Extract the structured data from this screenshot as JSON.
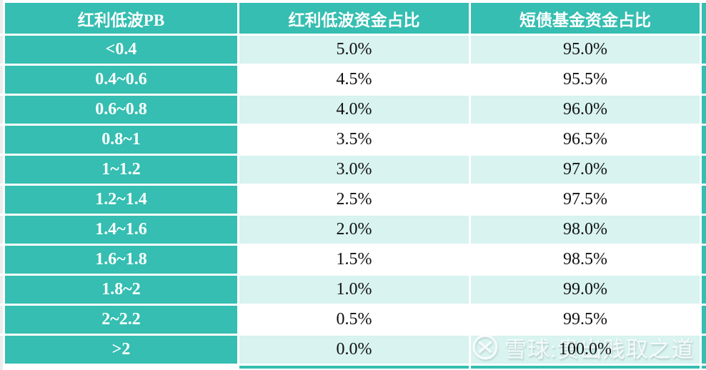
{
  "chart_data": {
    "type": "table",
    "title": "",
    "columns": [
      "红利低波PB",
      "红利低波资金占比",
      "短债基金资金占比"
    ],
    "rows": [
      [
        "<0.4",
        "5.0%",
        "95.0%"
      ],
      [
        "0.4~0.6",
        "4.5%",
        "95.5%"
      ],
      [
        "0.6~0.8",
        "4.0%",
        "96.0%"
      ],
      [
        "0.8~1",
        "3.5%",
        "96.5%"
      ],
      [
        "1~1.2",
        "3.0%",
        "97.0%"
      ],
      [
        "1.2~1.4",
        "2.5%",
        "97.5%"
      ],
      [
        "1.4~1.6",
        "2.0%",
        "98.0%"
      ],
      [
        "1.6~1.8",
        "1.5%",
        "98.5%"
      ],
      [
        "1.8~2",
        "1.0%",
        "99.0%"
      ],
      [
        "2~2.2",
        "0.5%",
        "99.5%"
      ],
      [
        ">2",
        "0.0%",
        "100.0%"
      ]
    ]
  },
  "table": {
    "columns": [
      "红利低波PB",
      "红利低波资金占比",
      "短债基金资金占比"
    ],
    "rows": [
      [
        "<0.4",
        "5.0%",
        "95.0%"
      ],
      [
        "0.4~0.6",
        "4.5%",
        "95.5%"
      ],
      [
        "0.6~0.8",
        "4.0%",
        "96.0%"
      ],
      [
        "0.8~1",
        "3.5%",
        "96.5%"
      ],
      [
        "1~1.2",
        "3.0%",
        "97.0%"
      ],
      [
        "1.2~1.4",
        "2.5%",
        "97.5%"
      ],
      [
        "1.4~1.6",
        "2.0%",
        "98.0%"
      ],
      [
        "1.6~1.8",
        "1.5%",
        "98.5%"
      ],
      [
        "1.8~2",
        "1.0%",
        "99.0%"
      ],
      [
        "2~2.2",
        "0.5%",
        "99.5%"
      ],
      [
        ">2",
        "0.0%",
        "100.0%"
      ]
    ]
  },
  "watermark": {
    "text": "雪球:贵出贱取之道"
  },
  "colors": {
    "teal": "#35beb1",
    "light_teal": "#d8f3f0",
    "page_gray": "#ececec"
  }
}
